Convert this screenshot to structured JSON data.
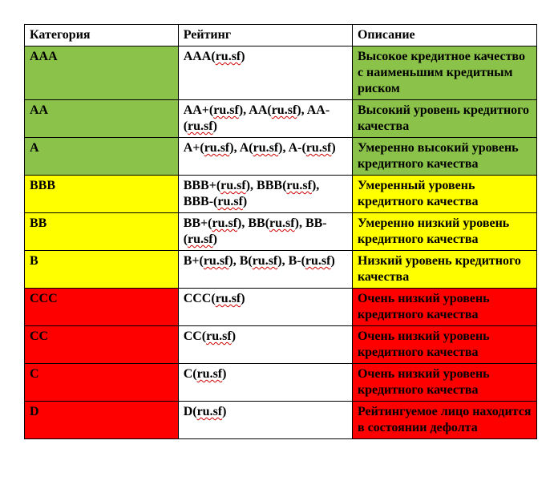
{
  "colors": {
    "green": "#8bc34a",
    "yellow": "#ffff00",
    "red": "#ff0000",
    "white": "#ffffff",
    "text": "#000000",
    "squiggle": "#d00000"
  },
  "headers": {
    "category": "Категория",
    "rating": "Рейтинг",
    "description": "Описание"
  },
  "rows": [
    {
      "category": "AAA",
      "rating_parts": [
        [
          "AAA(",
          "ru.sf",
          ")"
        ]
      ],
      "description": "Высокое кредитное качество с наименьшим кредитным риском",
      "band": "green"
    },
    {
      "category": "AA",
      "rating_parts": [
        [
          "AA+(",
          "ru.sf",
          "), "
        ],
        [
          "AA(",
          "ru.sf",
          "), "
        ],
        [
          "AA-(",
          "ru.sf",
          ")"
        ]
      ],
      "description": "Высокий уровень кредитного качества",
      "band": "green"
    },
    {
      "category": "A",
      "rating_parts": [
        [
          "A+(",
          "ru.sf",
          "), "
        ],
        [
          "A(",
          "ru.sf",
          "), "
        ],
        [
          "A-(",
          "ru.sf",
          ")"
        ]
      ],
      "description": "Умеренно высокий уровень кредитного качества",
      "band": "green"
    },
    {
      "category": "BBB",
      "rating_parts": [
        [
          "BBB+(",
          "ru.sf",
          "), "
        ],
        [
          "BBB(",
          "ru.sf",
          "), "
        ],
        [
          "BBB-(",
          "ru.sf",
          ")"
        ]
      ],
      "description": "Умеренный уровень кредитного качества",
      "band": "yellow"
    },
    {
      "category": "BB",
      "rating_parts": [
        [
          "BB+(",
          "ru.sf",
          "), "
        ],
        [
          "BB(",
          "ru.sf",
          "), "
        ],
        [
          "BB-(",
          "ru.sf",
          ")"
        ]
      ],
      "description": "Умеренно низкий уровень кредитного качества",
      "band": "yellow"
    },
    {
      "category": "B",
      "rating_parts": [
        [
          "B+(",
          "ru.sf",
          "), "
        ],
        [
          "B(",
          "ru.sf",
          "), "
        ],
        [
          "B-(",
          "ru.sf",
          ")"
        ]
      ],
      "description": "Низкий уровень кредитного качества",
      "band": "yellow"
    },
    {
      "category": "CCC",
      "rating_parts": [
        [
          "CCC(",
          "ru.sf",
          ")"
        ]
      ],
      "description": "Очень низкий уровень кредитного качества",
      "band": "red"
    },
    {
      "category": "CC",
      "rating_parts": [
        [
          "CC(",
          "ru.sf",
          ")"
        ]
      ],
      "description": "Очень низкий уровень кредитного качества",
      "band": "red"
    },
    {
      "category": "C",
      "rating_parts": [
        [
          "C(",
          "ru.sf",
          ")"
        ]
      ],
      "description": "Очень низкий уровень кредитного качества",
      "band": "red"
    },
    {
      "category": "D",
      "rating_parts": [
        [
          "D(",
          "ru.sf",
          ")"
        ]
      ],
      "description": "Рейтингуемое лицо находится в состоянии дефолта",
      "band": "red"
    }
  ]
}
